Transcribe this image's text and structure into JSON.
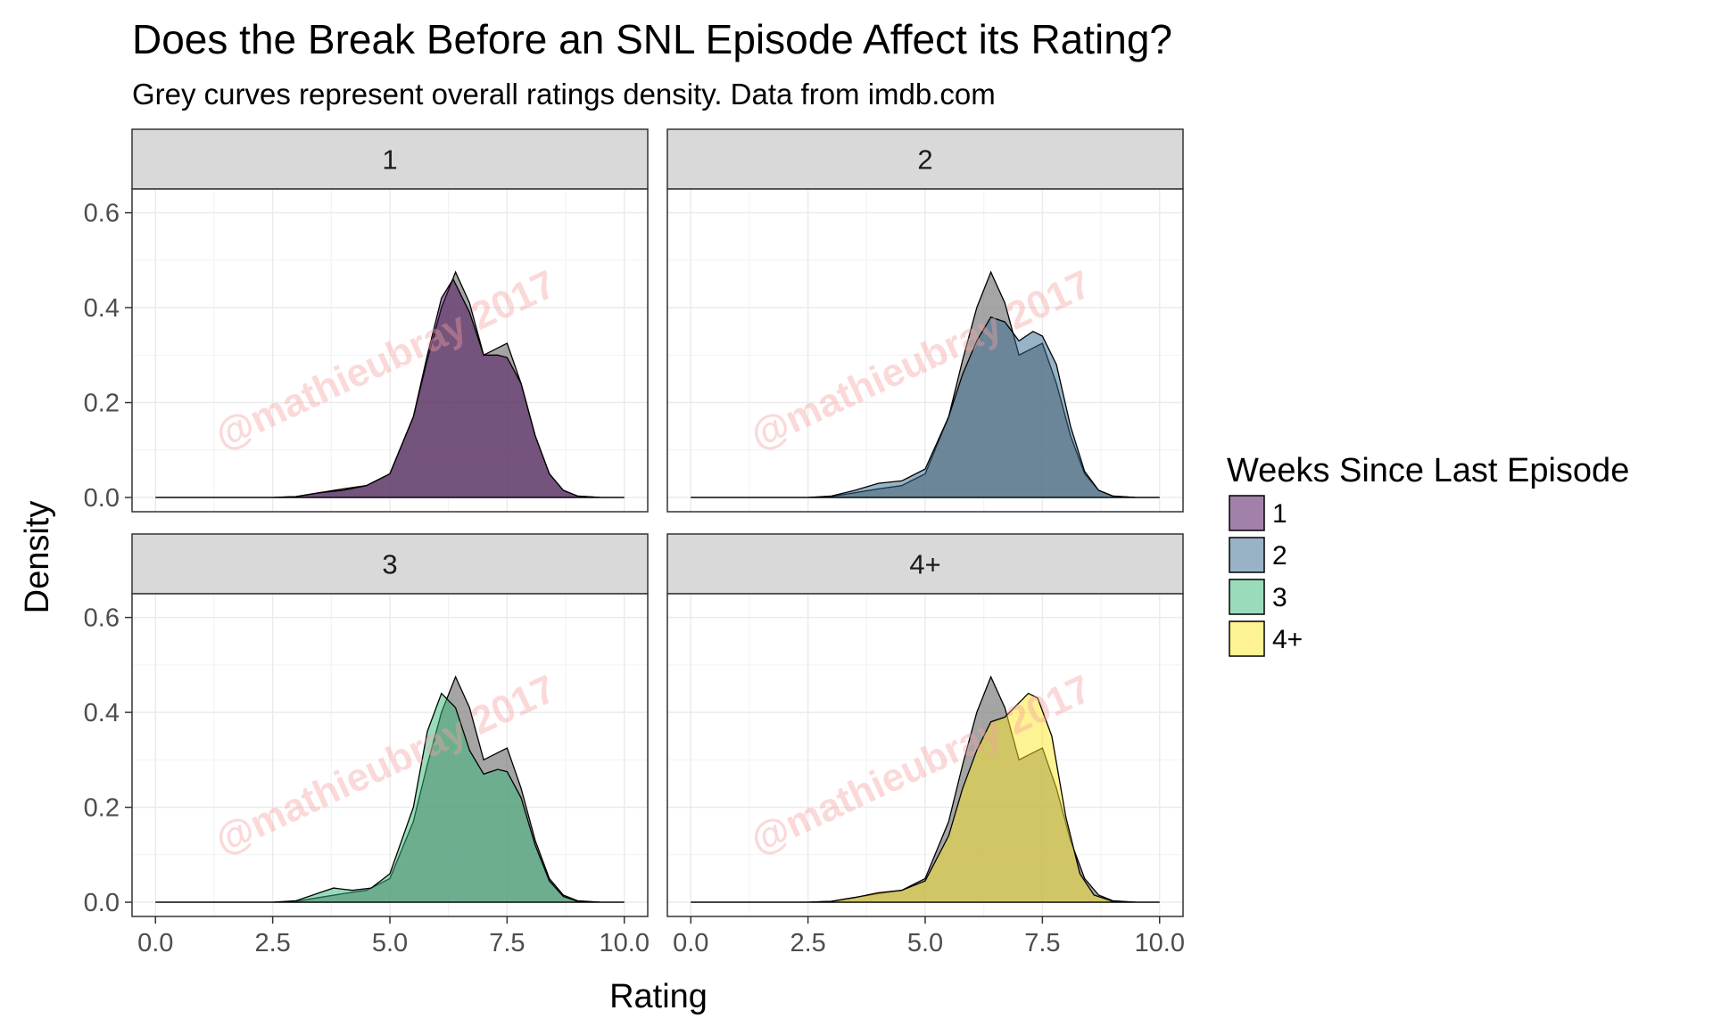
{
  "chart_data": {
    "type": "area",
    "title": "Does the Break Before an SNL Episode Affect its Rating?",
    "subtitle": "Grey curves represent overall ratings density. Data from imdb.com",
    "xlabel": "Rating",
    "ylabel": "Density",
    "xlim": [
      -0.5,
      10.5
    ],
    "ylim": [
      -0.03,
      0.65
    ],
    "xticks": [
      0.0,
      2.5,
      5.0,
      7.5,
      10.0
    ],
    "xtick_labels": [
      "0.0",
      "2.5",
      "5.0",
      "7.5",
      "10.0"
    ],
    "yticks": [
      0.0,
      0.2,
      0.4,
      0.6
    ],
    "ytick_labels": [
      "0.0",
      "0.2",
      "0.4",
      "0.6"
    ],
    "grid": true,
    "legend": {
      "title": "Weeks Since Last Episode",
      "position": "right",
      "items": [
        {
          "label": "1",
          "color": "#440154"
        },
        {
          "label": "2",
          "color": "#31688e"
        },
        {
          "label": "3",
          "color": "#35b779"
        },
        {
          "label": "4+",
          "color": "#fde725"
        }
      ]
    },
    "overall_color": "#7f7f7f",
    "watermark": "@mathieubray 2017",
    "overall": {
      "x": [
        0,
        2.5,
        3.0,
        3.5,
        4.0,
        4.5,
        5.0,
        5.5,
        5.8,
        6.1,
        6.4,
        6.7,
        7.0,
        7.3,
        7.5,
        7.8,
        8.1,
        8.4,
        8.7,
        9.0,
        9.5,
        10
      ],
      "y": [
        0,
        0,
        0.002,
        0.01,
        0.018,
        0.025,
        0.05,
        0.17,
        0.29,
        0.4,
        0.475,
        0.41,
        0.3,
        0.315,
        0.325,
        0.24,
        0.13,
        0.05,
        0.015,
        0.003,
        0,
        0
      ]
    },
    "panels": [
      {
        "label": "1",
        "color": "#440154",
        "x": [
          0,
          2.5,
          3.0,
          3.5,
          4.0,
          4.5,
          5.0,
          5.5,
          5.8,
          6.1,
          6.35,
          6.7,
          7.0,
          7.3,
          7.5,
          7.8,
          8.1,
          8.4,
          8.7,
          9.0,
          9.5,
          10
        ],
        "y": [
          0,
          0,
          0.002,
          0.01,
          0.015,
          0.025,
          0.05,
          0.17,
          0.3,
          0.42,
          0.46,
          0.39,
          0.3,
          0.3,
          0.295,
          0.24,
          0.13,
          0.05,
          0.015,
          0.003,
          0,
          0
        ]
      },
      {
        "label": "2",
        "color": "#31688e",
        "x": [
          0,
          2.5,
          3.0,
          3.5,
          4.0,
          4.5,
          5.0,
          5.5,
          5.8,
          6.1,
          6.4,
          6.7,
          7.0,
          7.3,
          7.5,
          7.8,
          8.1,
          8.4,
          8.7,
          9.0,
          9.5,
          10
        ],
        "y": [
          0,
          0,
          0.003,
          0.015,
          0.03,
          0.035,
          0.06,
          0.17,
          0.26,
          0.33,
          0.38,
          0.37,
          0.33,
          0.35,
          0.34,
          0.28,
          0.15,
          0.055,
          0.015,
          0.003,
          0,
          0
        ]
      },
      {
        "label": "3",
        "color": "#35b779",
        "x": [
          0,
          2.5,
          3.0,
          3.5,
          3.8,
          4.2,
          4.6,
          5.0,
          5.5,
          5.8,
          6.1,
          6.4,
          6.7,
          7.0,
          7.3,
          7.5,
          7.8,
          8.1,
          8.4,
          8.7,
          9.0,
          9.5,
          10
        ],
        "y": [
          0,
          0,
          0.003,
          0.02,
          0.03,
          0.025,
          0.03,
          0.06,
          0.2,
          0.36,
          0.44,
          0.41,
          0.32,
          0.27,
          0.28,
          0.275,
          0.22,
          0.12,
          0.045,
          0.012,
          0.002,
          0,
          0
        ]
      },
      {
        "label": "4+",
        "color": "#fde725",
        "x": [
          0,
          2.5,
          3.0,
          3.5,
          4.0,
          4.5,
          5.0,
          5.5,
          5.8,
          6.1,
          6.4,
          6.7,
          7.0,
          7.2,
          7.4,
          7.7,
          8.0,
          8.3,
          8.6,
          9.0,
          9.5,
          10
        ],
        "y": [
          0,
          0,
          0.002,
          0.01,
          0.02,
          0.025,
          0.045,
          0.14,
          0.24,
          0.32,
          0.38,
          0.39,
          0.42,
          0.44,
          0.43,
          0.35,
          0.18,
          0.06,
          0.015,
          0.002,
          0,
          0
        ]
      }
    ]
  }
}
